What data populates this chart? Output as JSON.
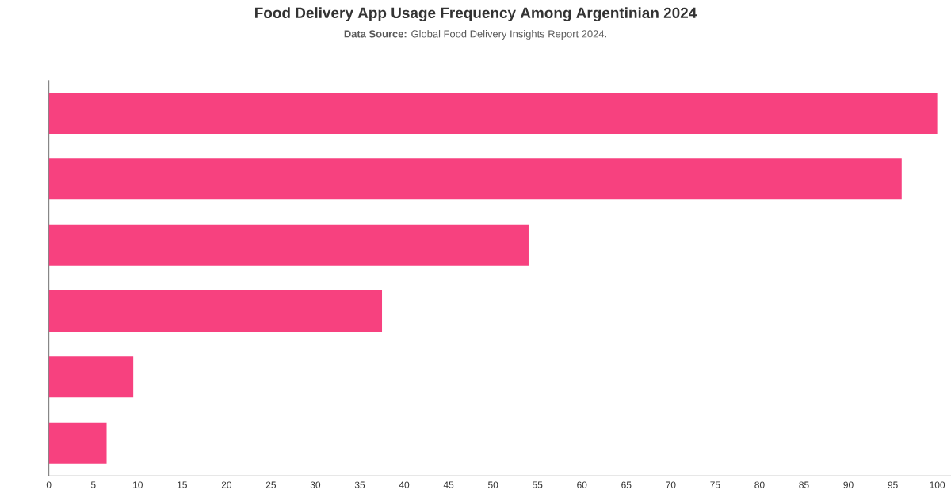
{
  "chart_data": {
    "type": "bar",
    "orientation": "horizontal",
    "title": "Food Delivery App Usage Frequency Among Argentinian 2024",
    "annotations": [
      "**Data Source:** Global Food Delivery Insights Report 2024."
    ],
    "categories": [
      null,
      null,
      null,
      null,
      null,
      null
    ],
    "values": [
      100,
      96,
      54,
      37.5,
      9.5,
      6.5
    ],
    "color": "#f7417f",
    "xlim": [
      0,
      105
    ],
    "xticks": [
      0,
      5,
      10,
      15,
      20,
      25,
      30,
      35,
      40,
      45,
      50,
      55,
      60,
      65,
      70,
      75,
      80,
      85,
      90,
      95,
      100
    ],
    "grid": false,
    "legend": false
  }
}
